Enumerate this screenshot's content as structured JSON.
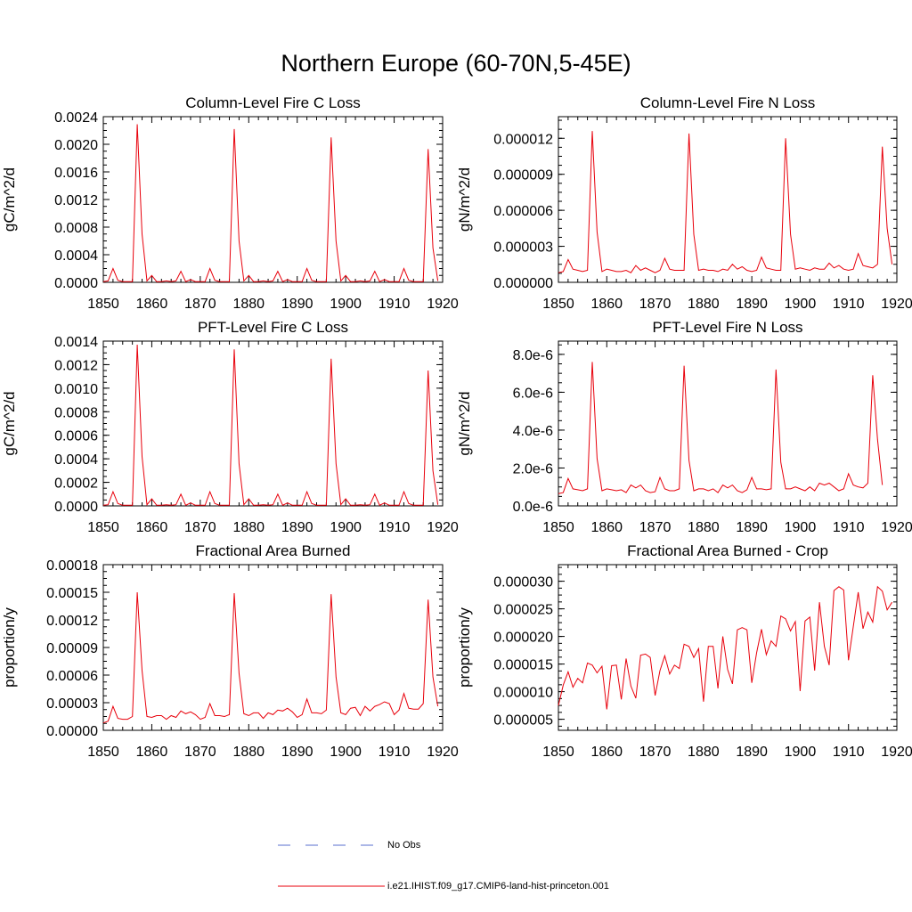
{
  "title": "Northern Europe (60-70N,5-45E)",
  "legend": [
    {
      "label": "No Obs",
      "color": "#5a6fcf",
      "style": "dashed"
    },
    {
      "label": "i.e21.IHIST.f09_g17.CMIP6-land-hist-princeton.001",
      "color": "#e8000b",
      "style": "solid"
    }
  ],
  "series_color": "#e8000b",
  "chart_data": [
    {
      "type": "line",
      "title": "Column-Level Fire C Loss",
      "ylabel": "gC/m^2/d",
      "xlim": [
        1850,
        1920
      ],
      "ylim": [
        0,
        0.0024
      ],
      "xticks": [
        "1850",
        "1860",
        "1870",
        "1880",
        "1890",
        "1900",
        "1910",
        "1920"
      ],
      "yticks": [
        "0.0000",
        "0.0004",
        "0.0008",
        "0.0012",
        "0.0016",
        "0.0020",
        "0.0024"
      ],
      "x_start": 1850,
      "series": [
        {
          "values": [
            1e-05,
            2e-05,
            0.0002,
            3e-05,
            1e-05,
            1e-05,
            1e-05,
            0.00229,
            0.0007,
            2e-05,
            0.0001,
            1e-05,
            1e-05,
            2e-05,
            1e-05,
            2e-05,
            0.00016,
            1e-05,
            4e-05,
            1e-05,
            1e-05,
            1e-05,
            0.0002,
            3e-05,
            1e-05,
            1e-05,
            1e-05,
            0.00222,
            0.0006,
            2e-05,
            0.0001,
            1e-05,
            1e-05,
            2e-05,
            1e-05,
            2e-05,
            0.00016,
            1e-05,
            4e-05,
            1e-05,
            1e-05,
            1e-05,
            0.0002,
            3e-05,
            1e-05,
            1e-05,
            1e-05,
            0.0021,
            0.0006,
            2e-05,
            0.0001,
            1e-05,
            1e-05,
            2e-05,
            1e-05,
            2e-05,
            0.00016,
            1e-05,
            4e-05,
            1e-05,
            1e-05,
            1e-05,
            0.0002,
            3e-05,
            1e-05,
            1e-05,
            1e-05,
            0.00193,
            0.0005,
            2e-05
          ]
        }
      ]
    },
    {
      "type": "line",
      "title": "Column-Level Fire N Loss",
      "ylabel": "gN/m^2/d",
      "xlim": [
        1850,
        1920
      ],
      "ylim": [
        0,
        1.38e-05
      ],
      "xticks": [
        "1850",
        "1860",
        "1870",
        "1880",
        "1890",
        "1900",
        "1910",
        "1920"
      ],
      "yticks": [
        "0.000000",
        "0.000003",
        "0.000006",
        "0.000009",
        "0.000012"
      ],
      "x_start": 1850,
      "series": [
        {
          "values": [
            8e-07,
            9e-07,
            1.9e-06,
            1.1e-06,
            1e-06,
            9e-07,
            1e-06,
            1.26e-05,
            4.2e-06,
            9e-07,
            1.1e-06,
            1e-06,
            9e-07,
            9e-07,
            1e-06,
            8e-07,
            1.4e-06,
            1e-06,
            1.2e-06,
            1e-06,
            8e-07,
            1e-06,
            2e-06,
            1.1e-06,
            1e-06,
            1e-06,
            1e-06,
            1.24e-05,
            4e-06,
            1e-06,
            1.1e-06,
            1e-06,
            1e-06,
            9e-07,
            1.1e-06,
            1e-06,
            1.5e-06,
            1.1e-06,
            1.3e-06,
            1e-06,
            9e-07,
            1e-06,
            2.1e-06,
            1.2e-06,
            1.1e-06,
            1e-06,
            1e-06,
            1.2e-05,
            4e-06,
            1.1e-06,
            1.2e-06,
            1.1e-06,
            1e-06,
            1.2e-06,
            1.1e-06,
            1.1e-06,
            1.6e-06,
            1.2e-06,
            1.4e-06,
            1.1e-06,
            1e-06,
            1.1e-06,
            2.4e-06,
            1.4e-06,
            1.3e-06,
            1.2e-06,
            1.5e-06,
            1.13e-05,
            4.5e-06,
            1.5e-06
          ]
        }
      ]
    },
    {
      "type": "line",
      "title": "PFT-Level Fire C Loss",
      "ylabel": "gC/m^2/d",
      "xlim": [
        1850,
        1920
      ],
      "ylim": [
        0,
        0.0014
      ],
      "xticks": [
        "1850",
        "1860",
        "1870",
        "1880",
        "1890",
        "1900",
        "1910",
        "1920"
      ],
      "yticks": [
        "0.0000",
        "0.0002",
        "0.0004",
        "0.0006",
        "0.0008",
        "0.0010",
        "0.0012",
        "0.0014"
      ],
      "x_start": 1850,
      "series": [
        {
          "values": [
            5e-06,
            1e-05,
            0.00012,
            2e-05,
            5e-06,
            5e-06,
            5e-06,
            0.00137,
            0.00042,
            1e-05,
            6e-05,
            5e-06,
            5e-06,
            1e-05,
            5e-06,
            1e-05,
            0.0001,
            5e-06,
            2.5e-05,
            5e-06,
            5e-06,
            5e-06,
            0.00012,
            2e-05,
            5e-06,
            5e-06,
            5e-06,
            0.00133,
            0.00036,
            1e-05,
            6e-05,
            5e-06,
            5e-06,
            1e-05,
            5e-06,
            1e-05,
            0.0001,
            5e-06,
            2.5e-05,
            5e-06,
            5e-06,
            5e-06,
            0.00012,
            2e-05,
            5e-06,
            5e-06,
            5e-06,
            0.00125,
            0.00036,
            1e-05,
            6e-05,
            5e-06,
            5e-06,
            1e-05,
            5e-06,
            1e-05,
            0.0001,
            5e-06,
            2.5e-05,
            5e-06,
            5e-06,
            5e-06,
            0.00012,
            2e-05,
            5e-06,
            5e-06,
            5e-06,
            0.00115,
            0.0003,
            1e-05
          ]
        }
      ]
    },
    {
      "type": "line",
      "title": "PFT-Level Fire N Loss",
      "ylabel": "gN/m^2/d",
      "xlim": [
        1850,
        1920
      ],
      "ylim": [
        0,
        8.7e-06
      ],
      "xticks": [
        "1850",
        "1860",
        "1870",
        "1880",
        "1890",
        "1900",
        "1910",
        "1920"
      ],
      "yticks": [
        "0.0e-6",
        "2.0e-6",
        "4.0e-6",
        "6.0e-6",
        "8.0e-6"
      ],
      "x_start": 1850,
      "series": [
        {
          "values": [
            6.5e-07,
            7e-07,
            1.45e-06,
            9e-07,
            8.5e-07,
            8e-07,
            9e-07,
            7.6e-06,
            2.5e-06,
            8e-07,
            9e-07,
            8.5e-07,
            8e-07,
            8.5e-07,
            7e-07,
            1.1e-06,
            9.5e-07,
            1.1e-06,
            8e-07,
            7e-07,
            7.5e-07,
            1.5e-06,
            9e-07,
            8e-07,
            8e-07,
            9e-07,
            7.4e-06,
            2.4e-06,
            8e-07,
            9e-07,
            9e-07,
            8e-07,
            9e-07,
            7e-07,
            1.1e-06,
            9.5e-07,
            1.1e-06,
            8e-07,
            7e-07,
            8.5e-07,
            1.5e-06,
            9e-07,
            9e-07,
            8.5e-07,
            9e-07,
            7.2e-06,
            2.3e-06,
            9e-07,
            9e-07,
            1e-06,
            9e-07,
            8e-07,
            1e-06,
            8e-07,
            1.2e-06,
            1.1e-06,
            1.2e-06,
            1e-06,
            8e-07,
            9e-07,
            1.7e-06,
            1.1e-06,
            1e-06,
            9.5e-07,
            1.2e-06,
            6.9e-06,
            3.5e-06,
            1.1e-06
          ]
        }
      ]
    },
    {
      "type": "line",
      "title": "Fractional Area Burned",
      "ylabel": "proportion/y",
      "xlim": [
        1850,
        1920
      ],
      "ylim": [
        0,
        0.00018
      ],
      "xticks": [
        "1850",
        "1860",
        "1870",
        "1880",
        "1890",
        "1900",
        "1910",
        "1920"
      ],
      "yticks": [
        "0.00000",
        "0.00003",
        "0.00006",
        "0.00009",
        "0.00012",
        "0.00015",
        "0.00018"
      ],
      "x_start": 1850,
      "series": [
        {
          "values": [
            8e-06,
            1e-05,
            2.6e-05,
            1.3e-05,
            1.2e-05,
            1.2e-05,
            1.5e-05,
            0.00015,
            6.5e-05,
            1.5e-05,
            1.4e-05,
            1.6e-05,
            1.6e-05,
            1.2e-05,
            1.6e-05,
            1.4e-05,
            2.1e-05,
            1.8e-05,
            2e-05,
            1.7e-05,
            1.2e-05,
            1.4e-05,
            2.9e-05,
            1.6e-05,
            1.6e-05,
            1.5e-05,
            1.7e-05,
            0.000149,
            6.2e-05,
            1.8e-05,
            1.6e-05,
            1.9e-05,
            1.9e-05,
            1.3e-05,
            1.9e-05,
            1.7e-05,
            2.2e-05,
            2.1e-05,
            2.4e-05,
            2e-05,
            1.4e-05,
            1.7e-05,
            3.4e-05,
            1.9e-05,
            1.9e-05,
            1.8e-05,
            2.2e-05,
            0.000148,
            5.8e-05,
            1.9e-05,
            1.7e-05,
            2.4e-05,
            2.5e-05,
            1.6e-05,
            2.6e-05,
            2.1e-05,
            2.6e-05,
            2.8e-05,
            3.1e-05,
            2.9e-05,
            1.7e-05,
            2.2e-05,
            4e-05,
            2.4e-05,
            2.3e-05,
            2.3e-05,
            2.9e-05,
            0.000142,
            5.8e-05,
            2.6e-05
          ]
        }
      ]
    },
    {
      "type": "line",
      "title": "Fractional Area Burned - Crop",
      "ylabel": "proportion/y",
      "xlim": [
        1850,
        1920
      ],
      "ylim": [
        3e-06,
        3.3e-05
      ],
      "xticks": [
        "1850",
        "1860",
        "1870",
        "1880",
        "1890",
        "1900",
        "1910",
        "1920"
      ],
      "yticks": [
        "0.000005",
        "0.000010",
        "0.000015",
        "0.000020",
        "0.000025",
        "0.000030"
      ],
      "x_start": 1850,
      "series": [
        {
          "values": [
            7.5e-06,
            1.12e-05,
            1.36e-05,
            1.08e-05,
            1.24e-05,
            1.16e-05,
            1.52e-05,
            1.48e-05,
            1.34e-05,
            1.46e-05,
            6.8e-06,
            1.47e-05,
            1.48e-05,
            8.6e-06,
            1.6e-05,
            1.1e-05,
            8.8e-06,
            1.66e-05,
            1.68e-05,
            1.62e-05,
            9.3e-06,
            1.38e-05,
            1.65e-05,
            1.32e-05,
            1.48e-05,
            1.42e-05,
            1.86e-05,
            1.82e-05,
            1.62e-05,
            1.78e-05,
            8.2e-06,
            1.82e-05,
            1.82e-05,
            1.06e-05,
            2e-05,
            1.4e-05,
            1.14e-05,
            2.12e-05,
            2.16e-05,
            2.12e-05,
            1.16e-05,
            1.71e-05,
            2.13e-05,
            1.67e-05,
            1.92e-05,
            1.82e-05,
            2.37e-05,
            2.32e-05,
            2.1e-05,
            2.27e-05,
            1.01e-05,
            2.28e-05,
            2.35e-05,
            1.38e-05,
            2.62e-05,
            1.82e-05,
            1.48e-05,
            2.83e-05,
            2.9e-05,
            2.84e-05,
            1.57e-05,
            2.18e-05,
            2.8e-05,
            2.14e-05,
            2.44e-05,
            2.26e-05,
            2.9e-05,
            2.82e-05,
            2.48e-05,
            2.62e-05
          ]
        }
      ]
    }
  ]
}
